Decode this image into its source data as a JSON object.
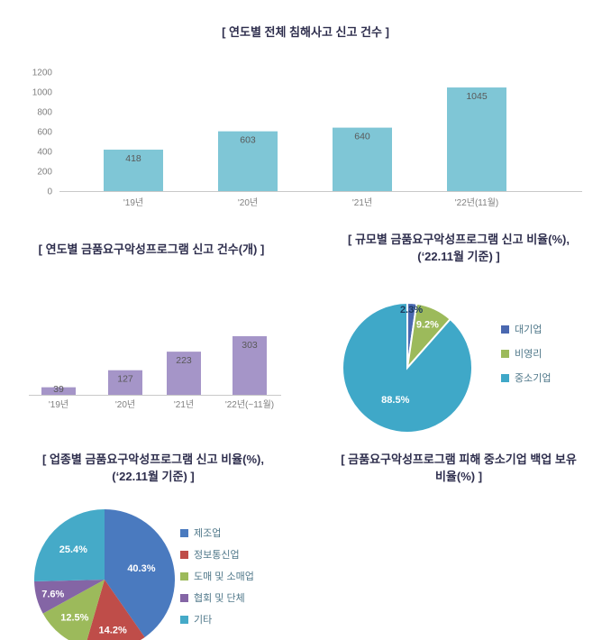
{
  "chart_data": [
    {
      "id": "total-incidents",
      "type": "bar",
      "title": "[ 연도별 전체 침해사고 신고 건수 ]",
      "categories": [
        "'19년",
        "'20년",
        "'21년",
        "'22년(11월)"
      ],
      "values": [
        418,
        603,
        640,
        1045
      ],
      "ylim": [
        0,
        1200
      ],
      "yticks": [
        0,
        200,
        400,
        600,
        800,
        1000,
        1200
      ],
      "grid": false,
      "bar_color": "#7fc6d6",
      "value_label_color": "#595959"
    },
    {
      "id": "ransom-report-counts",
      "type": "bar",
      "title": "[ 연도별 금품요구악성프로그램 신고 건수(개) ]",
      "categories": [
        "'19년",
        "'20년",
        "'21년",
        "'22년(~11월)"
      ],
      "values": [
        39,
        127,
        223,
        303
      ],
      "ylim": [
        0,
        340
      ],
      "yticks": [],
      "grid": false,
      "bar_color": "#a595c8",
      "value_label_color": "#595959"
    },
    {
      "id": "ransom-by-scale",
      "type": "pie",
      "title_line1": "[ 규모별 금품요구악성프로그램 신고 비율(%),",
      "title_line2": "(‘22.11월 기준) ]",
      "legend_position": "right",
      "slices": [
        {
          "label": "대기업",
          "value": 2.3,
          "color": "#4a68b0"
        },
        {
          "label": "비영리",
          "value": 9.2,
          "color": "#9cba5b"
        },
        {
          "label": "중소기업",
          "value": 88.5,
          "color": "#3fa8c8"
        }
      ]
    },
    {
      "id": "ransom-by-industry",
      "type": "pie",
      "title_line1": "[ 업종별 금품요구악성프로그램 신고 비율(%),",
      "title_line2": "(‘22.11월 기준) ]",
      "legend_position": "right",
      "slices": [
        {
          "label": "제조업",
          "value": 40.3,
          "color": "#4a7abf"
        },
        {
          "label": "정보통신업",
          "value": 14.2,
          "color": "#bf4d49"
        },
        {
          "label": "도매 및 소매업",
          "value": 12.5,
          "color": "#9cba5b"
        },
        {
          "label": "협회 및 단체",
          "value": 7.6,
          "color": "#8465a5"
        },
        {
          "label": "기타",
          "value": 25.4,
          "color": "#45aac8"
        }
      ]
    },
    {
      "id": "backup-rate",
      "type": "title-only",
      "title_line1": "[ 금품요구악성프로그램 피해 중소기업 백업 보유",
      "title_line2": "비율(%) ]"
    }
  ]
}
